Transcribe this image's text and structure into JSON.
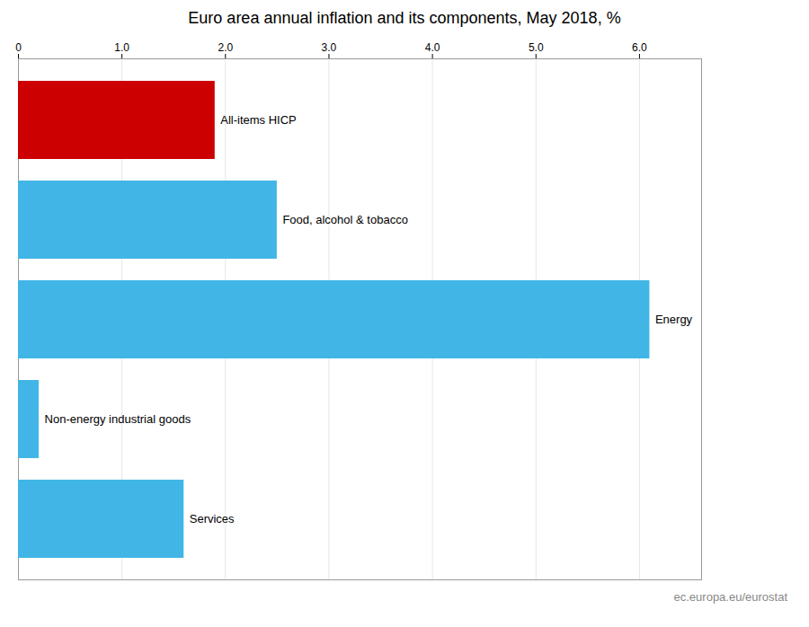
{
  "chart_data": {
    "type": "bar",
    "orientation": "horizontal",
    "title": "Euro area annual inflation and its components, May 2018, %",
    "categories": [
      "All-items HICP",
      "Food, alcohol & tobacco",
      "Energy",
      "Non-energy industrial goods",
      "Services"
    ],
    "values": [
      1.9,
      2.5,
      6.1,
      0.2,
      1.6
    ],
    "colors": [
      "#cc0000",
      "#41b6e6",
      "#41b6e6",
      "#41b6e6",
      "#41b6e6"
    ],
    "xlim": [
      0,
      6.6
    ],
    "xticks": [
      0,
      {
        "value": 1.0,
        "label": "1.0"
      },
      {
        "value": 2.0,
        "label": "2.0"
      },
      {
        "value": 3.0,
        "label": "3.0"
      },
      {
        "value": 4.0,
        "label": "4.0"
      },
      {
        "value": 5.0,
        "label": "5.0"
      },
      {
        "value": 6.0,
        "label": "6.0"
      }
    ],
    "grid": true,
    "tick_labels": "x",
    "annotations": [
      "ec.europa.eu/eurostat"
    ]
  }
}
